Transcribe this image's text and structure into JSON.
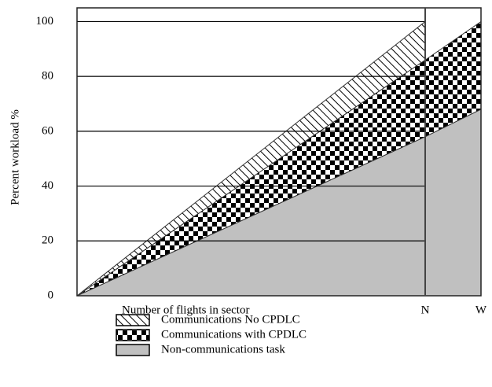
{
  "chart_data": {
    "type": "stacked_area",
    "y_label": "Percent workload %",
    "x_label": "Number of flights in sector",
    "categories": [
      null,
      "N",
      "W"
    ],
    "ylim": [
      0,
      105
    ],
    "yticks": [
      0,
      20,
      40,
      60,
      80,
      100
    ],
    "grid": true,
    "legend": "bottom",
    "series": [
      {
        "name": "Non-communications task",
        "color": "#c0c0c0",
        "pattern": "solid",
        "values": [
          0,
          58,
          68
        ]
      },
      {
        "name": "Communications with CPDLC",
        "color": "#000000",
        "pattern": "checker",
        "values": [
          0,
          28,
          32
        ]
      },
      {
        "name": "Communications No CPDLC",
        "color": "#000000",
        "pattern": "hatch",
        "values": [
          0,
          14,
          null
        ]
      }
    ]
  }
}
